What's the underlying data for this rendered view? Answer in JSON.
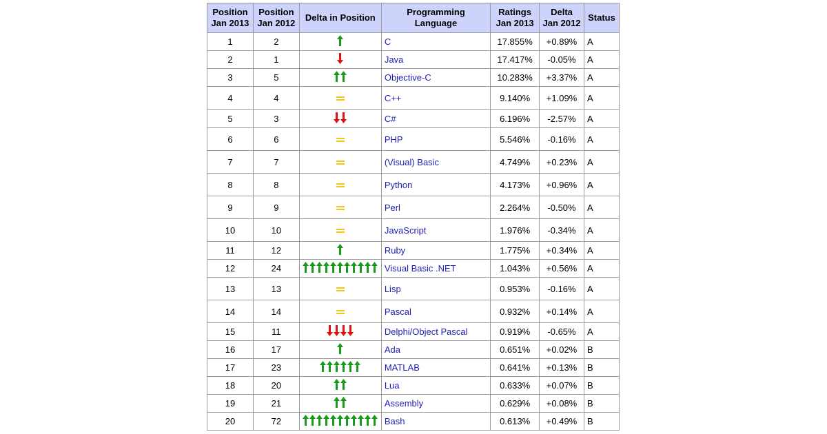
{
  "headers": {
    "pos2013": [
      "Position",
      "Jan 2013"
    ],
    "pos2012": [
      "Position",
      "Jan 2012"
    ],
    "delta_pos": "Delta in Position",
    "language": "Programming Language",
    "ratings": [
      "Ratings",
      "Jan 2013"
    ],
    "delta": [
      "Delta",
      "Jan 2012"
    ],
    "status": "Status"
  },
  "colors": {
    "up": "#1a9a1a",
    "down": "#e01010",
    "same": "#f5c518",
    "header_bg": "#cdd3fb",
    "link": "#1e1eb4"
  },
  "rows": [
    {
      "pos2013": "1",
      "pos2012": "2",
      "trend": "up",
      "count": 1,
      "language": "C",
      "rating": "17.855%",
      "delta": "+0.89%",
      "status": "A"
    },
    {
      "pos2013": "2",
      "pos2012": "1",
      "trend": "down",
      "count": 1,
      "language": "Java",
      "rating": "17.417%",
      "delta": "-0.05%",
      "status": "A"
    },
    {
      "pos2013": "3",
      "pos2012": "5",
      "trend": "up",
      "count": 2,
      "language": "Objective-C",
      "rating": "10.283%",
      "delta": "+3.37%",
      "status": "A"
    },
    {
      "pos2013": "4",
      "pos2012": "4",
      "trend": "same",
      "count": 1,
      "language": "C++",
      "rating": "9.140%",
      "delta": "+1.09%",
      "status": "A"
    },
    {
      "pos2013": "5",
      "pos2012": "3",
      "trend": "down",
      "count": 2,
      "language": "C#",
      "rating": "6.196%",
      "delta": "-2.57%",
      "status": "A"
    },
    {
      "pos2013": "6",
      "pos2012": "6",
      "trend": "same",
      "count": 1,
      "language": "PHP",
      "rating": "5.546%",
      "delta": "-0.16%",
      "status": "A"
    },
    {
      "pos2013": "7",
      "pos2012": "7",
      "trend": "same",
      "count": 1,
      "language": "(Visual) Basic",
      "rating": "4.749%",
      "delta": "+0.23%",
      "status": "A"
    },
    {
      "pos2013": "8",
      "pos2012": "8",
      "trend": "same",
      "count": 1,
      "language": "Python",
      "rating": "4.173%",
      "delta": "+0.96%",
      "status": "A"
    },
    {
      "pos2013": "9",
      "pos2012": "9",
      "trend": "same",
      "count": 1,
      "language": "Perl",
      "rating": "2.264%",
      "delta": "-0.50%",
      "status": "A"
    },
    {
      "pos2013": "10",
      "pos2012": "10",
      "trend": "same",
      "count": 1,
      "language": "JavaScript",
      "rating": "1.976%",
      "delta": "-0.34%",
      "status": "A"
    },
    {
      "pos2013": "11",
      "pos2012": "12",
      "trend": "up",
      "count": 1,
      "language": "Ruby",
      "rating": "1.775%",
      "delta": "+0.34%",
      "status": "A"
    },
    {
      "pos2013": "12",
      "pos2012": "24",
      "trend": "up",
      "count": 11,
      "language": "Visual Basic .NET",
      "rating": "1.043%",
      "delta": "+0.56%",
      "status": "A"
    },
    {
      "pos2013": "13",
      "pos2012": "13",
      "trend": "same",
      "count": 1,
      "language": "Lisp",
      "rating": "0.953%",
      "delta": "-0.16%",
      "status": "A"
    },
    {
      "pos2013": "14",
      "pos2012": "14",
      "trend": "same",
      "count": 1,
      "language": "Pascal",
      "rating": "0.932%",
      "delta": "+0.14%",
      "status": "A"
    },
    {
      "pos2013": "15",
      "pos2012": "11",
      "trend": "down",
      "count": 4,
      "language": "Delphi/Object Pascal",
      "rating": "0.919%",
      "delta": "-0.65%",
      "status": "A"
    },
    {
      "pos2013": "16",
      "pos2012": "17",
      "trend": "up",
      "count": 1,
      "language": "Ada",
      "rating": "0.651%",
      "delta": "+0.02%",
      "status": "B"
    },
    {
      "pos2013": "17",
      "pos2012": "23",
      "trend": "up",
      "count": 6,
      "language": "MATLAB",
      "rating": "0.641%",
      "delta": "+0.13%",
      "status": "B"
    },
    {
      "pos2013": "18",
      "pos2012": "20",
      "trend": "up",
      "count": 2,
      "language": "Lua",
      "rating": "0.633%",
      "delta": "+0.07%",
      "status": "B"
    },
    {
      "pos2013": "19",
      "pos2012": "21",
      "trend": "up",
      "count": 2,
      "language": "Assembly",
      "rating": "0.629%",
      "delta": "+0.08%",
      "status": "B"
    },
    {
      "pos2013": "20",
      "pos2012": "72",
      "trend": "up",
      "count": 11,
      "language": "Bash",
      "rating": "0.613%",
      "delta": "+0.49%",
      "status": "B"
    }
  ]
}
